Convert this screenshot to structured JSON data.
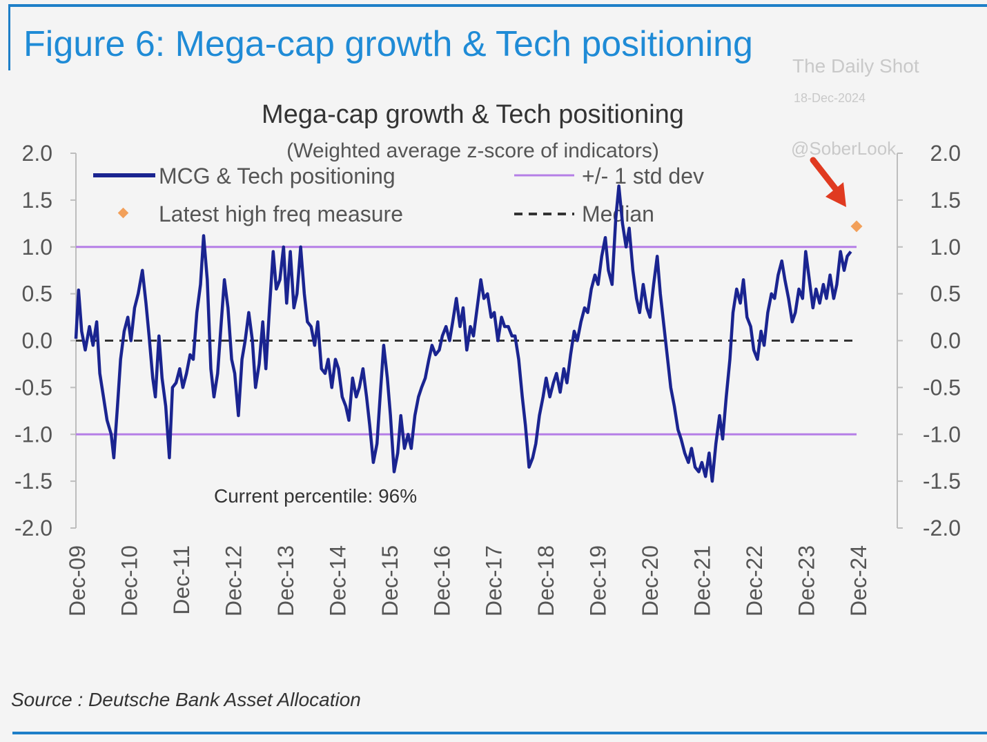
{
  "figure_title": "Figure 6: Mega-cap growth & Tech positioning",
  "watermark": {
    "name": "The Daily Shot",
    "date": "18-Dec-2024",
    "handle": "@SoberLook"
  },
  "source": "Source : Deutsche Bank Asset Allocation",
  "colors": {
    "brand_blue": "#1f8bd6",
    "series": "#1a2490",
    "std_band": "#b57ee6",
    "latest": "#f2a05a",
    "median": "#333333",
    "arrow": "#e03a20"
  },
  "icons": [
    "red-arrow-icon",
    "orange-diamond-icon"
  ],
  "chart_data": {
    "type": "line",
    "title": "Mega-cap growth & Tech positioning",
    "subtitle": "(Weighted average z-score of indicators)",
    "ylim": [
      -2.0,
      2.0
    ],
    "y_ticks": [
      "2.0",
      "1.5",
      "1.0",
      "0.5",
      "0.0",
      "-0.5",
      "-1.0",
      "-1.5",
      "-2.0"
    ],
    "y_tick_values": [
      2.0,
      1.5,
      1.0,
      0.5,
      0.0,
      -0.5,
      -1.0,
      -1.5,
      -2.0
    ],
    "x_tick_labels": [
      "Dec-09",
      "Dec-10",
      "Dec-11",
      "Dec-12",
      "Dec-13",
      "Dec-14",
      "Dec-15",
      "Dec-16",
      "Dec-17",
      "Dec-18",
      "Dec-19",
      "Dec-20",
      "Dec-21",
      "Dec-22",
      "Dec-23",
      "Dec-24"
    ],
    "x_range": [
      2009.92,
      2024.96
    ],
    "legend_position": "top",
    "legend": [
      {
        "label": "MCG & Tech positioning",
        "key": "series"
      },
      {
        "label": "+/- 1 std dev",
        "key": "std"
      },
      {
        "label": "Latest high freq measure",
        "key": "latest"
      },
      {
        "label": "Median",
        "key": "median"
      }
    ],
    "std_dev_lines": [
      1.0,
      -1.0
    ],
    "median": 0.0,
    "latest_high_freq": {
      "x": 2024.96,
      "y": 1.22
    },
    "annotation": "Current percentile: 96%",
    "series": [
      {
        "name": "MCG & Tech positioning",
        "points": [
          [
            2009.92,
            0.02
          ],
          [
            2009.97,
            0.54
          ],
          [
            2010.03,
            0.1
          ],
          [
            2010.1,
            -0.1
          ],
          [
            2010.18,
            0.15
          ],
          [
            2010.25,
            -0.05
          ],
          [
            2010.32,
            0.2
          ],
          [
            2010.38,
            -0.35
          ],
          [
            2010.45,
            -0.6
          ],
          [
            2010.52,
            -0.85
          ],
          [
            2010.6,
            -1.0
          ],
          [
            2010.65,
            -1.25
          ],
          [
            2010.72,
            -0.7
          ],
          [
            2010.78,
            -0.2
          ],
          [
            2010.85,
            0.1
          ],
          [
            2010.92,
            0.25
          ],
          [
            2010.98,
            0.0
          ],
          [
            2011.05,
            0.35
          ],
          [
            2011.12,
            0.5
          ],
          [
            2011.2,
            0.75
          ],
          [
            2011.27,
            0.4
          ],
          [
            2011.33,
            0.05
          ],
          [
            2011.4,
            -0.4
          ],
          [
            2011.45,
            -0.6
          ],
          [
            2011.52,
            0.05
          ],
          [
            2011.58,
            -0.4
          ],
          [
            2011.65,
            -0.7
          ],
          [
            2011.72,
            -1.25
          ],
          [
            2011.78,
            -0.5
          ],
          [
            2011.85,
            -0.45
          ],
          [
            2011.92,
            -0.3
          ],
          [
            2011.98,
            -0.5
          ],
          [
            2012.05,
            -0.35
          ],
          [
            2012.12,
            -0.15
          ],
          [
            2012.18,
            -0.2
          ],
          [
            2012.25,
            0.3
          ],
          [
            2012.32,
            0.6
          ],
          [
            2012.38,
            1.12
          ],
          [
            2012.45,
            0.65
          ],
          [
            2012.52,
            -0.3
          ],
          [
            2012.58,
            -0.6
          ],
          [
            2012.65,
            -0.35
          ],
          [
            2012.72,
            0.2
          ],
          [
            2012.78,
            0.65
          ],
          [
            2012.85,
            0.35
          ],
          [
            2012.92,
            -0.2
          ],
          [
            2012.98,
            -0.35
          ],
          [
            2013.05,
            -0.8
          ],
          [
            2013.12,
            -0.2
          ],
          [
            2013.18,
            0.0
          ],
          [
            2013.25,
            0.3
          ],
          [
            2013.32,
            0.0
          ],
          [
            2013.38,
            -0.5
          ],
          [
            2013.45,
            -0.25
          ],
          [
            2013.52,
            0.2
          ],
          [
            2013.58,
            -0.3
          ],
          [
            2013.65,
            0.35
          ],
          [
            2013.72,
            0.95
          ],
          [
            2013.78,
            0.55
          ],
          [
            2013.85,
            0.65
          ],
          [
            2013.92,
            1.0
          ],
          [
            2013.98,
            0.4
          ],
          [
            2014.05,
            0.95
          ],
          [
            2014.12,
            0.35
          ],
          [
            2014.18,
            0.5
          ],
          [
            2014.25,
            1.0
          ],
          [
            2014.32,
            0.5
          ],
          [
            2014.38,
            0.2
          ],
          [
            2014.45,
            0.15
          ],
          [
            2014.52,
            -0.05
          ],
          [
            2014.58,
            0.2
          ],
          [
            2014.65,
            -0.3
          ],
          [
            2014.72,
            -0.35
          ],
          [
            2014.78,
            -0.2
          ],
          [
            2014.85,
            -0.5
          ],
          [
            2014.92,
            -0.2
          ],
          [
            2014.98,
            -0.3
          ],
          [
            2015.05,
            -0.6
          ],
          [
            2015.12,
            -0.7
          ],
          [
            2015.18,
            -0.85
          ],
          [
            2015.25,
            -0.4
          ],
          [
            2015.32,
            -0.6
          ],
          [
            2015.38,
            -0.5
          ],
          [
            2015.45,
            -0.3
          ],
          [
            2015.52,
            -0.6
          ],
          [
            2015.58,
            -0.9
          ],
          [
            2015.65,
            -1.3
          ],
          [
            2015.72,
            -1.1
          ],
          [
            2015.78,
            -0.6
          ],
          [
            2015.85,
            -0.05
          ],
          [
            2015.92,
            -0.4
          ],
          [
            2015.98,
            -0.8
          ],
          [
            2016.05,
            -1.4
          ],
          [
            2016.12,
            -1.2
          ],
          [
            2016.18,
            -0.8
          ],
          [
            2016.25,
            -1.15
          ],
          [
            2016.32,
            -1.0
          ],
          [
            2016.38,
            -1.15
          ],
          [
            2016.45,
            -0.8
          ],
          [
            2016.52,
            -0.6
          ],
          [
            2016.58,
            -0.5
          ],
          [
            2016.65,
            -0.4
          ],
          [
            2016.72,
            -0.2
          ],
          [
            2016.78,
            -0.05
          ],
          [
            2016.85,
            -0.15
          ],
          [
            2016.92,
            -0.1
          ],
          [
            2016.98,
            0.05
          ],
          [
            2017.05,
            0.15
          ],
          [
            2017.12,
            0.0
          ],
          [
            2017.18,
            0.2
          ],
          [
            2017.25,
            0.45
          ],
          [
            2017.32,
            0.15
          ],
          [
            2017.38,
            0.35
          ],
          [
            2017.45,
            -0.1
          ],
          [
            2017.52,
            0.15
          ],
          [
            2017.58,
            0.05
          ],
          [
            2017.65,
            0.35
          ],
          [
            2017.72,
            0.65
          ],
          [
            2017.78,
            0.45
          ],
          [
            2017.85,
            0.5
          ],
          [
            2017.92,
            0.25
          ],
          [
            2017.98,
            0.3
          ],
          [
            2018.05,
            0.0
          ],
          [
            2018.12,
            0.25
          ],
          [
            2018.18,
            0.15
          ],
          [
            2018.25,
            0.15
          ],
          [
            2018.32,
            0.05
          ],
          [
            2018.38,
            0.05
          ],
          [
            2018.45,
            -0.2
          ],
          [
            2018.52,
            -0.6
          ],
          [
            2018.58,
            -0.9
          ],
          [
            2018.65,
            -1.35
          ],
          [
            2018.72,
            -1.25
          ],
          [
            2018.78,
            -1.1
          ],
          [
            2018.85,
            -0.8
          ],
          [
            2018.92,
            -0.6
          ],
          [
            2018.98,
            -0.4
          ],
          [
            2019.05,
            -0.6
          ],
          [
            2019.12,
            -0.45
          ],
          [
            2019.18,
            -0.35
          ],
          [
            2019.25,
            -0.55
          ],
          [
            2019.32,
            -0.3
          ],
          [
            2019.38,
            -0.45
          ],
          [
            2019.45,
            -0.15
          ],
          [
            2019.52,
            0.1
          ],
          [
            2019.58,
            0.0
          ],
          [
            2019.65,
            0.2
          ],
          [
            2019.72,
            0.35
          ],
          [
            2019.78,
            0.3
          ],
          [
            2019.85,
            0.55
          ],
          [
            2019.92,
            0.7
          ],
          [
            2019.98,
            0.6
          ],
          [
            2020.05,
            0.9
          ],
          [
            2020.12,
            1.1
          ],
          [
            2020.18,
            0.75
          ],
          [
            2020.25,
            0.6
          ],
          [
            2020.32,
            1.3
          ],
          [
            2020.38,
            1.65
          ],
          [
            2020.45,
            1.25
          ],
          [
            2020.52,
            1.0
          ],
          [
            2020.58,
            1.2
          ],
          [
            2020.65,
            0.75
          ],
          [
            2020.72,
            0.45
          ],
          [
            2020.78,
            0.3
          ],
          [
            2020.85,
            0.6
          ],
          [
            2020.92,
            0.35
          ],
          [
            2020.98,
            0.25
          ],
          [
            2021.05,
            0.6
          ],
          [
            2021.12,
            0.9
          ],
          [
            2021.18,
            0.5
          ],
          [
            2021.25,
            0.15
          ],
          [
            2021.32,
            -0.2
          ],
          [
            2021.38,
            -0.5
          ],
          [
            2021.45,
            -0.7
          ],
          [
            2021.52,
            -0.95
          ],
          [
            2021.58,
            -1.05
          ],
          [
            2021.65,
            -1.2
          ],
          [
            2021.72,
            -1.3
          ],
          [
            2021.78,
            -1.15
          ],
          [
            2021.85,
            -1.35
          ],
          [
            2021.92,
            -1.4
          ],
          [
            2021.98,
            -1.3
          ],
          [
            2022.05,
            -1.45
          ],
          [
            2022.12,
            -1.2
          ],
          [
            2022.18,
            -1.5
          ],
          [
            2022.25,
            -1.1
          ],
          [
            2022.32,
            -0.8
          ],
          [
            2022.38,
            -1.05
          ],
          [
            2022.45,
            -0.6
          ],
          [
            2022.52,
            -0.2
          ],
          [
            2022.58,
            0.3
          ],
          [
            2022.65,
            0.55
          ],
          [
            2022.72,
            0.4
          ],
          [
            2022.78,
            0.65
          ],
          [
            2022.85,
            0.25
          ],
          [
            2022.92,
            0.15
          ],
          [
            2022.98,
            -0.1
          ],
          [
            2023.05,
            -0.2
          ],
          [
            2023.12,
            0.1
          ],
          [
            2023.18,
            -0.05
          ],
          [
            2023.25,
            0.3
          ],
          [
            2023.32,
            0.5
          ],
          [
            2023.38,
            0.45
          ],
          [
            2023.45,
            0.7
          ],
          [
            2023.52,
            0.85
          ],
          [
            2023.58,
            0.65
          ],
          [
            2023.65,
            0.45
          ],
          [
            2023.72,
            0.2
          ],
          [
            2023.78,
            0.3
          ],
          [
            2023.85,
            0.55
          ],
          [
            2023.92,
            0.45
          ],
          [
            2023.98,
            0.95
          ],
          [
            2024.05,
            0.65
          ],
          [
            2024.12,
            0.35
          ],
          [
            2024.18,
            0.55
          ],
          [
            2024.25,
            0.4
          ],
          [
            2024.32,
            0.6
          ],
          [
            2024.38,
            0.45
          ],
          [
            2024.45,
            0.7
          ],
          [
            2024.52,
            0.45
          ],
          [
            2024.58,
            0.6
          ],
          [
            2024.65,
            0.95
          ],
          [
            2024.72,
            0.75
          ],
          [
            2024.78,
            0.9
          ],
          [
            2024.85,
            0.95
          ]
        ]
      }
    ]
  }
}
